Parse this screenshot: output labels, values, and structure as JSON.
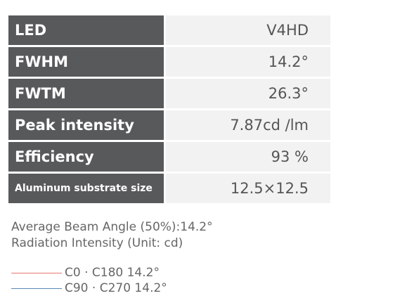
{
  "table": {
    "rows": [
      [
        "LED",
        "V4HD"
      ],
      [
        "FWHM",
        "14.2°"
      ],
      [
        "FWTM",
        "26.3°"
      ],
      [
        "Peak intensity",
        "7.87cd /lm"
      ],
      [
        "Efficiency",
        "93 %"
      ],
      [
        "Aluminum substrate size",
        "12.5×12.5"
      ]
    ]
  },
  "notes": [
    "Average Beam Angle (50%):14.2°",
    "Radiation Intensity (Unit: cd)"
  ],
  "legend": [
    {
      "label": "C0 · C180 14.2°",
      "color": "#e8776f"
    },
    {
      "label": "C90 · C270 14.2°",
      "color": "#5b86b5"
    }
  ]
}
